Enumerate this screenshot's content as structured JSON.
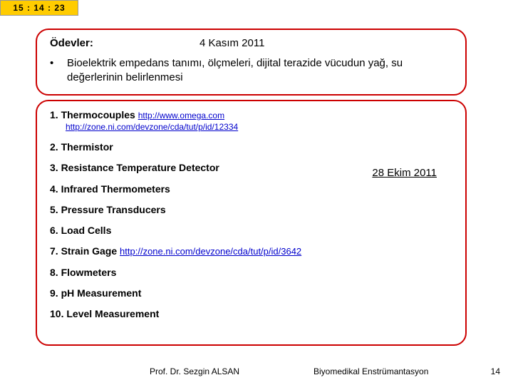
{
  "time": "15  : 14  : 23",
  "box1": {
    "header_left": "Ödevler:",
    "header_right": "4 Kasım 2011",
    "bullet": "Bioelektrik empedans tanımı, ölçmeleri, dijital terazide vücudun yağ, su değerlerinin belirlenmesi"
  },
  "box2": {
    "side_date": "28 Ekim 2011",
    "items": {
      "n1": "1. Thermocouples",
      "n1_link1": "http://www.omega.com",
      "n1_link2": "http://zone.ni.com/devzone/cda/tut/p/id/12334",
      "n2": "2. Thermistor",
      "n3": "3. Resistance Temperature Detector",
      "n4": "4. Infrared Thermometers",
      "n5": "5. Pressure Transducers",
      "n6": "6. Load Cells",
      "n7": "7. Strain Gage",
      "n7_link": "http://zone.ni.com/devzone/cda/tut/p/id/3642",
      "n8": "8. Flowmeters",
      "n9": "9. pH Measurement",
      "n10": "10. Level Measurement"
    }
  },
  "footer": {
    "left": "Prof. Dr. Sezgin ALSAN",
    "right": "Biyomedikal Enstrümantasyon",
    "num": "14"
  },
  "colors": {
    "border": "#cc0000",
    "time_bg": "#ffcc00",
    "link": "#0000cc",
    "bg": "#ffffff",
    "text": "#000000"
  }
}
